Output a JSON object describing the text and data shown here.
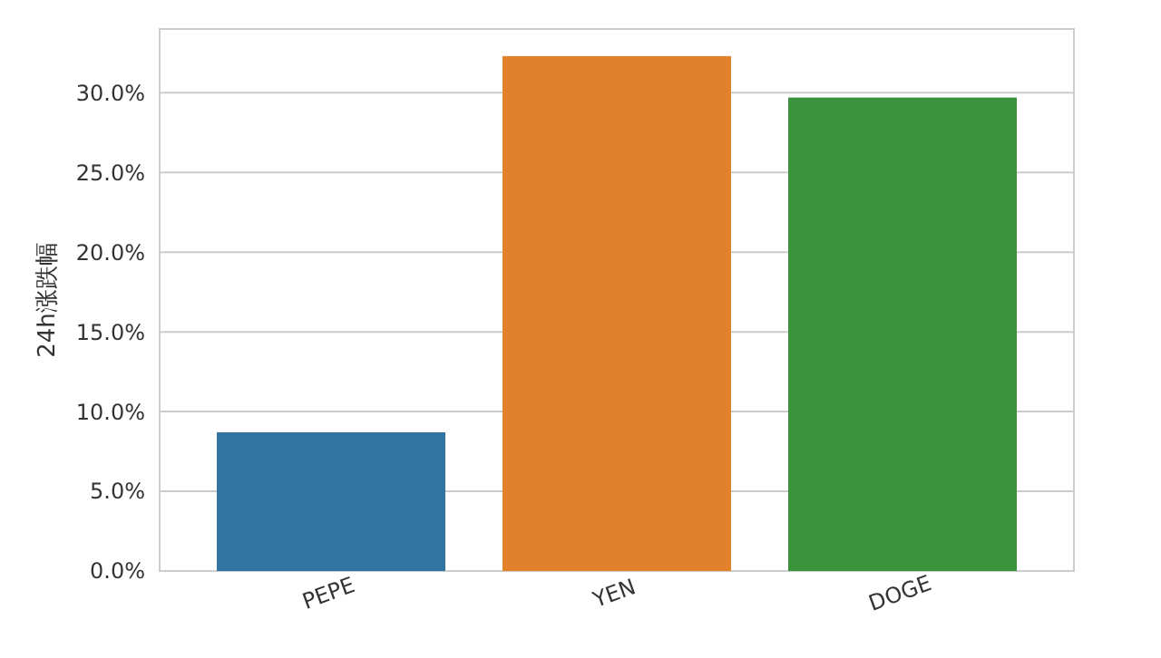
{
  "chart_data": {
    "type": "bar",
    "ylabel": "24h涨跌幅",
    "categories": [
      "PEPE",
      "YEN",
      "DOGE"
    ],
    "values": [
      8.7,
      32.3,
      29.7
    ],
    "colors": [
      "#3274a1",
      "#e1812c",
      "#3a923a"
    ],
    "ylim": [
      0,
      34
    ],
    "yticks": [
      {
        "value": 0,
        "label": "0.0%"
      },
      {
        "value": 5,
        "label": "5.0%"
      },
      {
        "value": 10,
        "label": "10.0%"
      },
      {
        "value": 15,
        "label": "15.0%"
      },
      {
        "value": 20,
        "label": "20.0%"
      },
      {
        "value": 25,
        "label": "25.0%"
      },
      {
        "value": 30,
        "label": "30.0%"
      }
    ],
    "grid": "y"
  }
}
